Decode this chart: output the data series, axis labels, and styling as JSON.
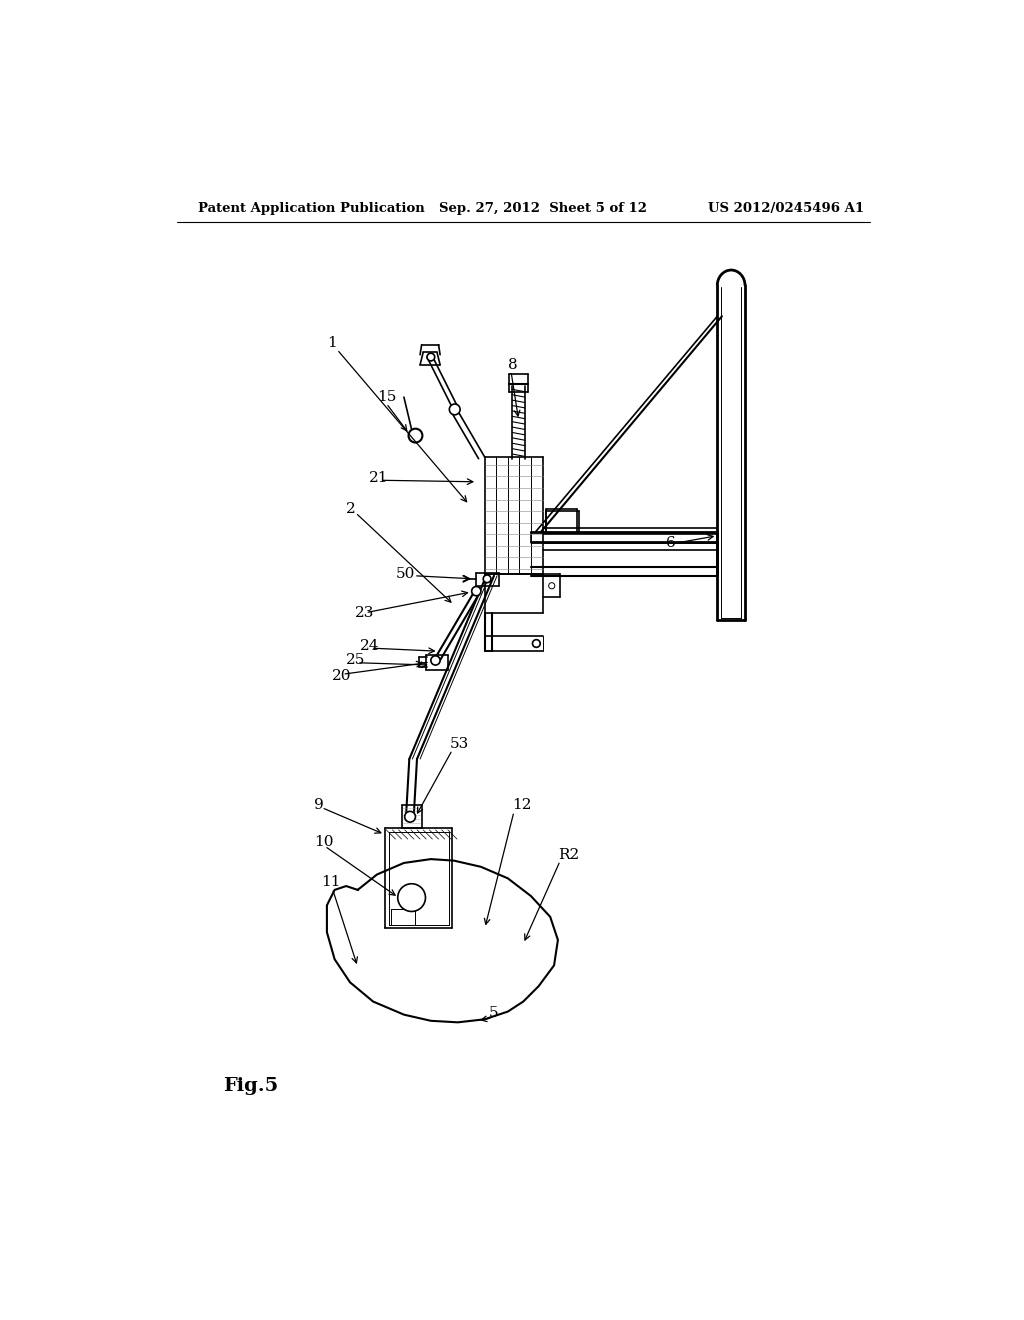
{
  "bg_color": "#ffffff",
  "line_color": "#000000",
  "header_left": "Patent Application Publication",
  "header_center": "Sep. 27, 2012  Sheet 5 of 12",
  "header_right": "US 2012/0245496 A1",
  "figure_label": "Fig.5",
  "lw_main": 1.2,
  "lw_thin": 0.7,
  "lw_thick": 2.0,
  "lw_med": 1.5
}
